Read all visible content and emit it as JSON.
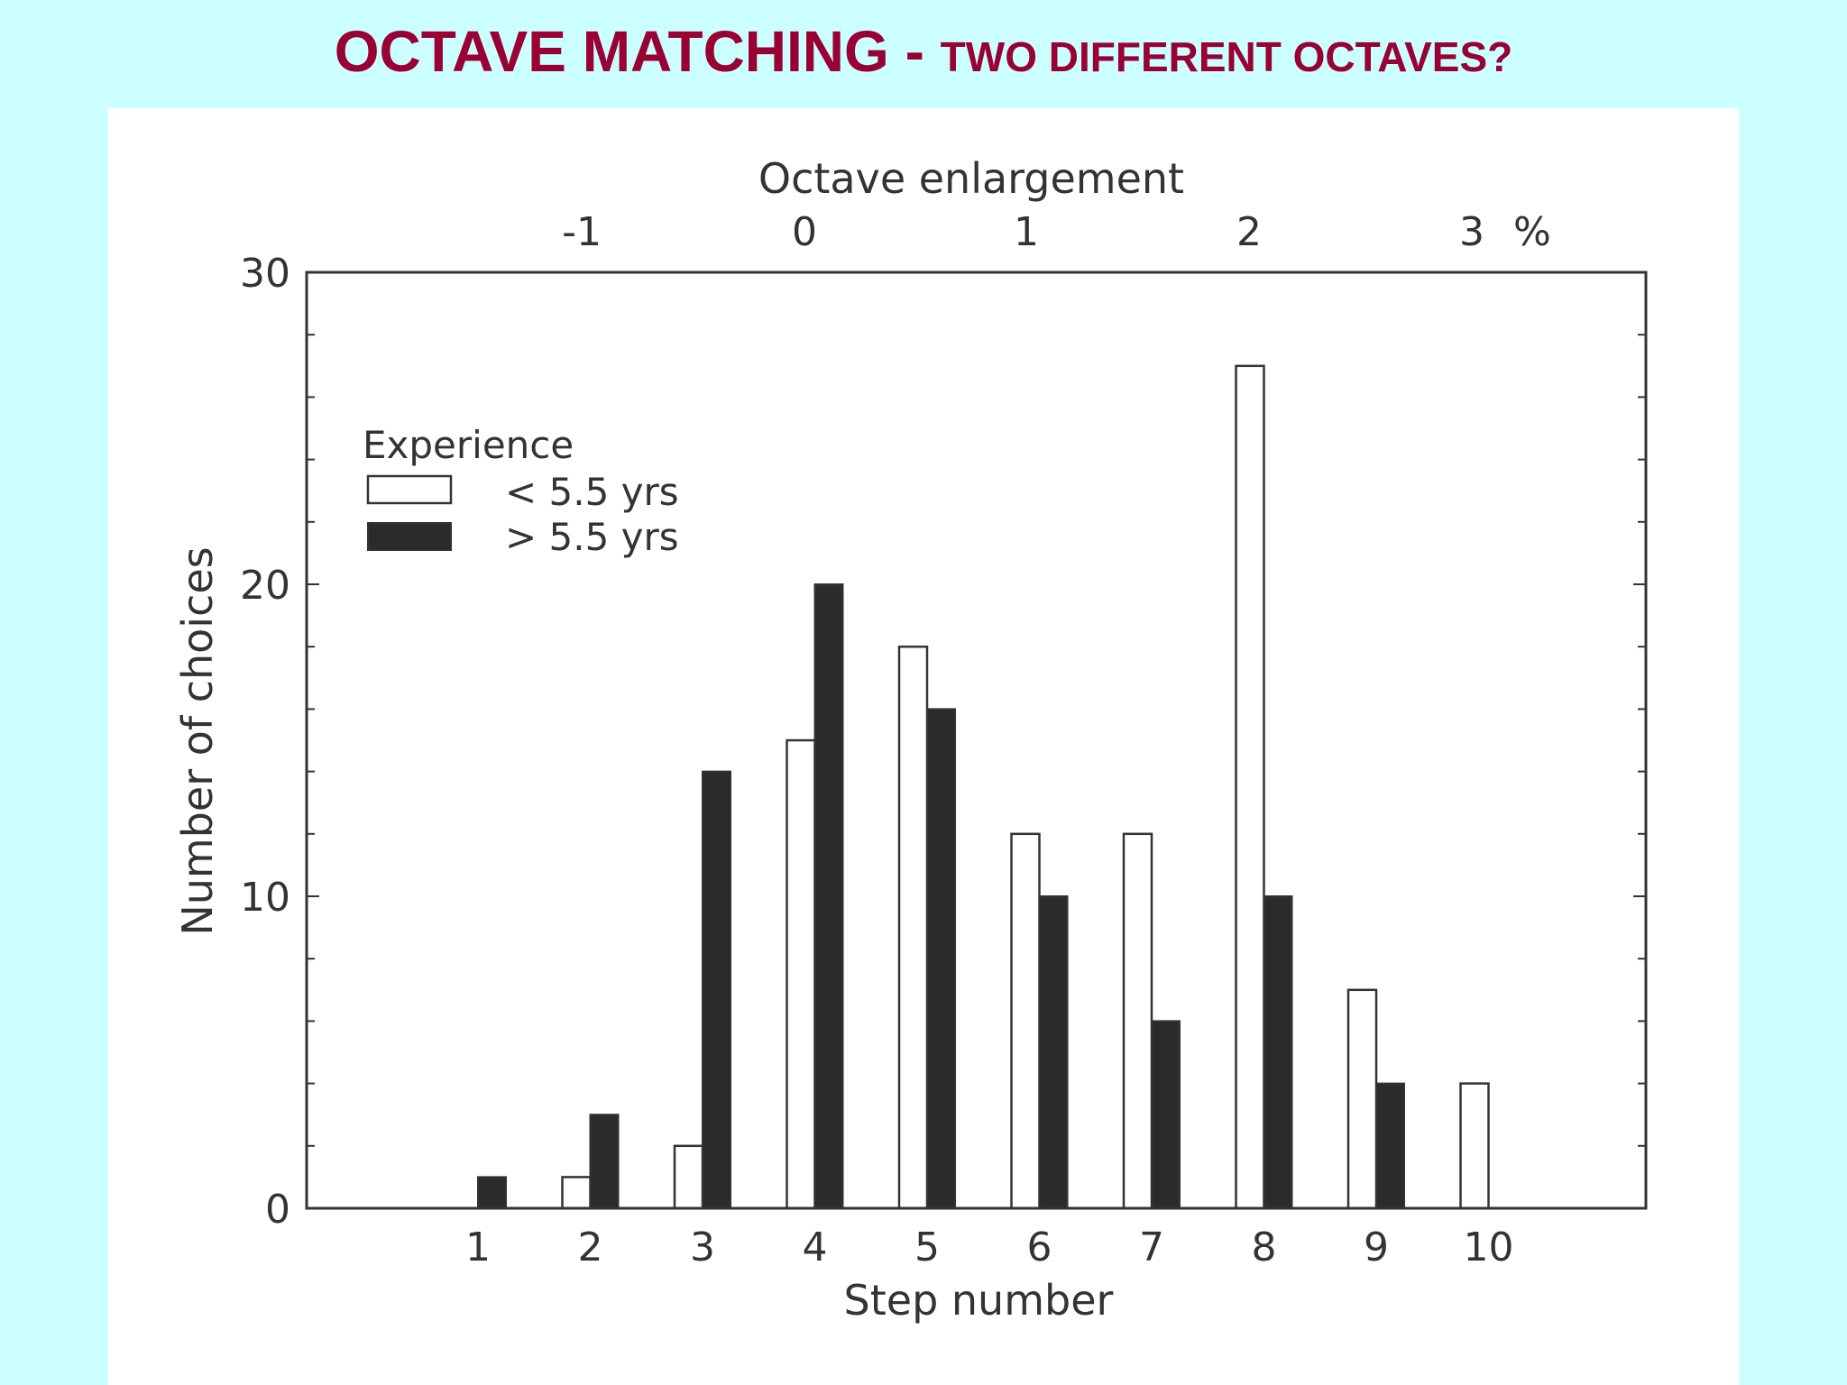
{
  "title": {
    "main": "OCTAVE MATCHING",
    "separator": " - ",
    "sub": "TWO DIFFERENT OCTAVES?"
  },
  "colors": {
    "background": "#ccffff",
    "title": "#990033",
    "panel": "#ffffff",
    "ink": "#333333",
    "bar_dark": "#2b2b2b",
    "bar_light": "#ffffff"
  },
  "chart_data": {
    "type": "bar",
    "xlabel": "Step number",
    "ylabel": "Number of choices",
    "categories": [
      "1",
      "2",
      "3",
      "4",
      "5",
      "6",
      "7",
      "8",
      "9",
      "10"
    ],
    "ylim": [
      0,
      30
    ],
    "yticks": [
      "0",
      "10",
      "20",
      "30"
    ],
    "legend": {
      "title": "Experience",
      "placement": "upper-left",
      "entries": [
        "< 5.5 yrs",
        "> 5.5 yrs"
      ]
    },
    "series": [
      {
        "name": "< 5.5 yrs",
        "values": [
          0,
          1,
          2,
          15,
          18,
          12,
          12,
          27,
          7,
          4
        ]
      },
      {
        "name": "> 5.5 yrs",
        "values": [
          1,
          3,
          14,
          20,
          16,
          10,
          6,
          10,
          4,
          0
        ]
      }
    ],
    "top_axis": {
      "label": "Octave enlargement",
      "unit": "%",
      "ticks": [
        "-1",
        "0",
        "1",
        "2",
        "3"
      ]
    }
  }
}
